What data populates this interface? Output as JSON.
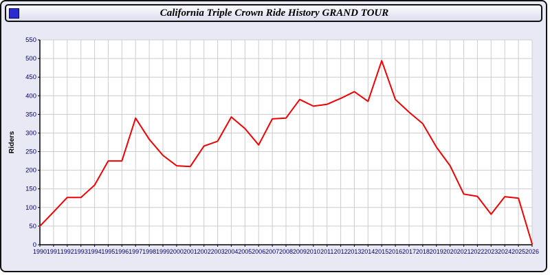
{
  "window": {
    "title": "California Triple Crown Ride History GRAND TOUR"
  },
  "chart_data": {
    "type": "line",
    "title": "California Triple Crown Ride History GRAND TOUR",
    "xlabel": "",
    "ylabel": "Riders",
    "ylim": [
      0,
      550
    ],
    "ytick": 50,
    "grid": "on",
    "legend": "none",
    "x": [
      1990,
      1991,
      1992,
      1993,
      1994,
      1995,
      1996,
      1997,
      1998,
      1999,
      2000,
      2001,
      2002,
      2003,
      2004,
      2005,
      2006,
      2007,
      2008,
      2009,
      2010,
      2011,
      2012,
      2013,
      2014,
      2015,
      2016,
      2017,
      2018,
      2019,
      2020,
      2021,
      2022,
      2023,
      2024,
      2025,
      2026
    ],
    "series": [
      {
        "name": "Riders",
        "values": [
          50,
          88,
          127,
          127,
          160,
          225,
          225,
          340,
          283,
          240,
          212,
          210,
          265,
          278,
          343,
          312,
          268,
          338,
          340,
          390,
          372,
          377,
          393,
          411,
          385,
          494,
          390,
          356,
          325,
          262,
          212,
          136,
          130,
          82,
          129,
          125,
          2
        ]
      }
    ],
    "colors": {
      "line": "#ee0000",
      "grid": "#cccccc",
      "plot_bg": "#ffffff",
      "outer_bg": "#e9e9f6",
      "axis": "#000000",
      "tick_label": "#000066",
      "ylabel_color": "#000000"
    }
  }
}
